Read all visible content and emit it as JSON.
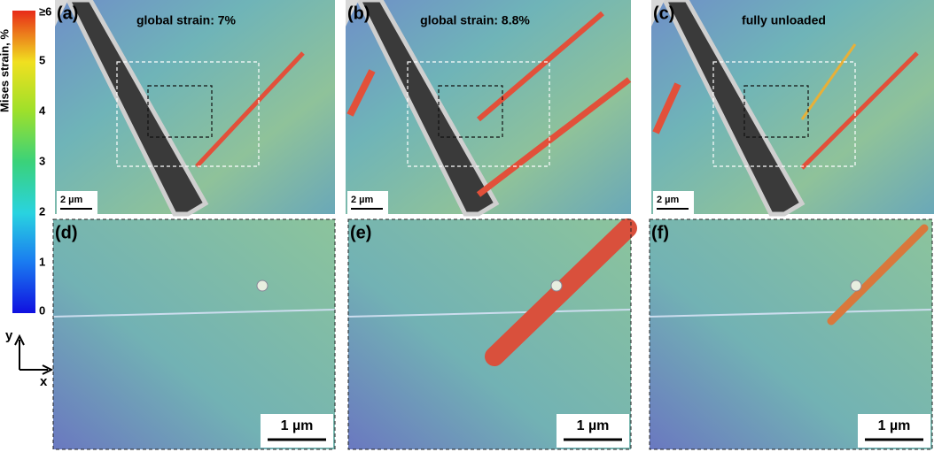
{
  "colorbar": {
    "label": "Mises strain, %",
    "ticks": [
      {
        "value": 6,
        "label": "≥6"
      },
      5,
      4,
      3,
      2,
      1,
      0
    ],
    "range": [
      0,
      6
    ]
  },
  "axes": {
    "y": "y",
    "x": "x"
  },
  "panels": [
    {
      "label": "(a)",
      "caption": "global strain: 7%",
      "scale": "2 µm"
    },
    {
      "label": "(b)",
      "caption": "global strain: 8.8%",
      "scale": "2 µm"
    },
    {
      "label": "(c)",
      "caption": "fully unloaded",
      "scale": "2 µm"
    },
    {
      "label": "(d)",
      "scale": "1 µm"
    },
    {
      "label": "(e)",
      "scale": "1 µm"
    },
    {
      "label": "(f)",
      "scale": "1 µm"
    }
  ]
}
